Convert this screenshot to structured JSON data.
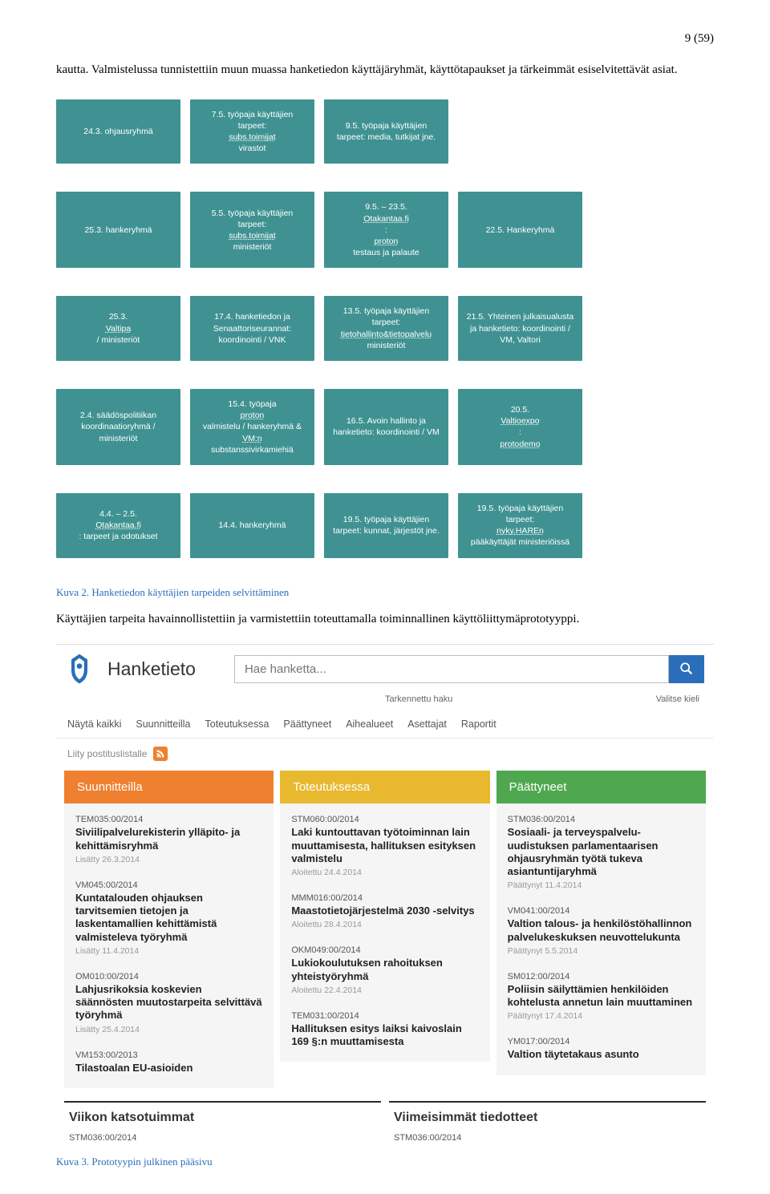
{
  "page_number": "9 (59)",
  "intro_text": "kautta. Valmistelussa tunnistettiin muun muassa hanketiedon käyttäjäryhmät, käyttötapaukset ja tärkeimmät esiselvitettävät asiat.",
  "flowchart": {
    "box_bg": "#409292",
    "text_color": "#ffffff",
    "rows": [
      [
        {
          "text": "24.3.\nohjausryhmä"
        },
        {
          "html": "7.5. työpaja käyttäjien tarpeet: <span class='u'>subs.toimijat</span> virastot"
        },
        {
          "text": "9.5. työpaja käyttäjien tarpeet: media, tutkijat jne."
        },
        {
          "spacer": true
        }
      ],
      [
        {
          "text": "25.3. hankeryhmä"
        },
        {
          "html": "5.5. työpaja käyttäjien tarpeet: <span class='u'>subs.toimijat</span> ministeriöt"
        },
        {
          "html": "9.5. – 23.5. <span class='u'>Otakantaa.fi</span> : <span class='u'>proton</span> testaus ja palaute"
        },
        {
          "text": "22.5. Hankeryhmä"
        }
      ],
      [
        {
          "html": "25.3. <span class='u'>Valtipa</span> / ministeriöt"
        },
        {
          "text": "17.4. hanketiedon ja Senaattoriseurannat: koordinointi / VNK"
        },
        {
          "html": "13.5. työpaja käyttäjien tarpeet: <span class='u'>tietohallinto&tietopalvelu</span> ministeriöt"
        },
        {
          "text": "21.5. Yhteinen julkaisualusta ja hanketieto: koordinointi / VM, Valtori"
        }
      ],
      [
        {
          "text": "2.4. säädöspolitiikan koordinaatioryhmä / ministeriöt"
        },
        {
          "html": "15.4. työpaja <span class='u'>proton</span> valmistelu / hankeryhmä & <span class='u'>VM:n</span> substanssivirkamiehiä"
        },
        {
          "text": "16.5. Avoin hallinto ja hanketieto: koordinointi / VM"
        },
        {
          "html": "20.5. <span class='u'>Valtioexpo</span>: <span class='u'>protodemo</span>"
        }
      ],
      [
        {
          "html": "4.4. – 2.5. <span class='u'>Otakantaa.fi</span> : tarpeet ja odotukset"
        },
        {
          "text": "14.4. hankeryhmä"
        },
        {
          "text": "19.5. työpaja käyttäjien tarpeet: kunnat, järjestöt jne."
        },
        {
          "html": "19.5. työpaja käyttäjien tarpeet: <span class='u'>nyky.HAREn</span> pääkäyttäjät ministeriöissä"
        }
      ]
    ]
  },
  "caption1": "Kuva 2. Hanketiedon käyttäjien tarpeiden selvittäminen",
  "mid_text": "Käyttäjien tarpeita havainnollistettiin ja varmistettiin toteuttamalla toiminnallinen käyttöliittymäprototyyppi.",
  "proto": {
    "logo_color": "#2a6ebb",
    "title": "Hanketieto",
    "search_placeholder": "Hae hanketta...",
    "sub_left": "Tarkennettu haku",
    "sub_right": "Valitse kieli",
    "nav": [
      "Näytä kaikki",
      "Suunnitteilla",
      "Toteutuksessa",
      "Päättyneet",
      "Aihealueet",
      "Asettajat",
      "Raportit"
    ],
    "rss_label": "Liity postituslistalle",
    "columns": [
      {
        "header": "Suunnitteilla",
        "header_bg": "#ee802f",
        "cards": [
          {
            "code": "TEM035:00/2014",
            "title": "Siviilipalvelurekisterin ylläpito- ja kehittämisryhmä",
            "date": "Lisätty 26.3.2014"
          },
          {
            "code": "VM045:00/2014",
            "title": "Kuntatalouden ohjauksen tarvitsemien tietojen ja laskentamallien kehittämistä valmisteleva työryhmä",
            "date": "Lisätty 11.4.2014"
          },
          {
            "code": "OM010:00/2014",
            "title": "Lahjusrikoksia koskevien säännösten muutostarpeita selvittävä työryhmä",
            "date": "Lisätty 25.4.2014"
          },
          {
            "code": "VM153:00/2013",
            "title": "Tilastoalan EU-asioiden",
            "date": ""
          }
        ]
      },
      {
        "header": "Toteutuksessa",
        "header_bg": "#e8b92e",
        "cards": [
          {
            "code": "STM060:00/2014",
            "title": "Laki kuntouttavan työtoiminnan lain muuttamisesta, hallituksen esityksen valmistelu",
            "date": "Aloitettu 24.4.2014"
          },
          {
            "code": "MMM016:00/2014",
            "title": "Maastotietojärjestelmä 2030 -selvitys",
            "date": "Aloitettu 28.4.2014"
          },
          {
            "code": "OKM049:00/2014",
            "title": "Lukiokoulutuksen rahoituksen yhteistyöryhmä",
            "date": "Aloitettu 22.4.2014"
          },
          {
            "code": "TEM031:00/2014",
            "title": "Hallituksen esitys laiksi kaivoslain 169 §:n muuttamisesta",
            "date": ""
          }
        ]
      },
      {
        "header": "Päättyneet",
        "header_bg": "#4fa84f",
        "cards": [
          {
            "code": "STM036:00/2014",
            "title": "Sosiaali- ja terveyspalvelu-uudistuksen parlamentaarisen ohjausryhmän työtä tukeva asiantuntijaryhmä",
            "date": "Päättynyt 11.4.2014"
          },
          {
            "code": "VM041:00/2014",
            "title": "Valtion talous- ja henkilöstöhallinnon palvelukeskuksen neuvottelukunta",
            "date": "Päättynyt 5.5.2014"
          },
          {
            "code": "SM012:00/2014",
            "title": "Poliisin säilyttämien henkilöiden kohtelusta annetun lain muuttaminen",
            "date": "Päättynyt 17.4.2014"
          },
          {
            "code": "YM017:00/2014",
            "title": "Valtion täytetakaus asunto",
            "date": ""
          }
        ]
      }
    ],
    "bottom": [
      {
        "title": "Viikon katsotuimmat",
        "code": "STM036:00/2014"
      },
      {
        "title": "Viimeisimmät tiedotteet",
        "code": "STM036:00/2014"
      }
    ]
  },
  "caption2": "Kuva 3. Prototyypin julkinen pääsivu"
}
